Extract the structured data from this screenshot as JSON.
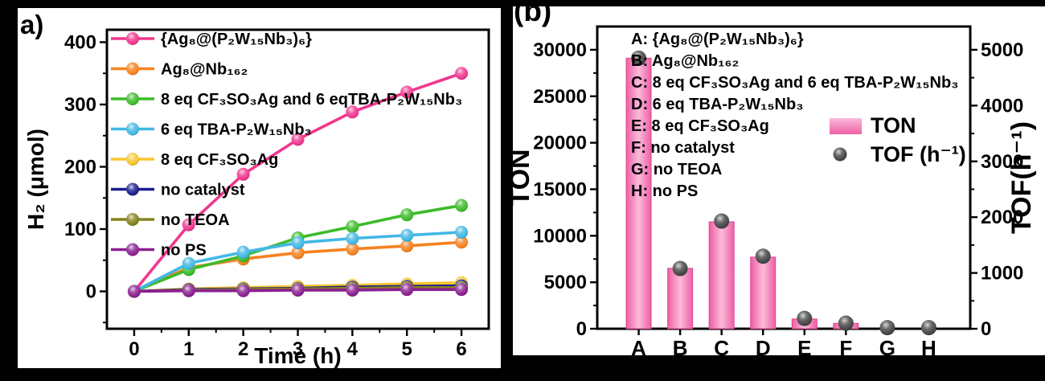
{
  "figure": {
    "background": "#000000",
    "panel_a_label": "a)",
    "panel_b_label": "(b)"
  },
  "chart_data": [
    {
      "type": "line",
      "panel": "a",
      "title": "",
      "xlabel": "Time (h)",
      "ylabel": "H₂ (μmol)",
      "x": [
        0,
        1,
        2,
        3,
        4,
        5,
        6
      ],
      "xticks": [
        0,
        1,
        2,
        3,
        4,
        5,
        6
      ],
      "yticks": [
        0,
        100,
        200,
        300,
        400
      ],
      "xlim": [
        -0.5,
        6.5
      ],
      "ylim": [
        -60,
        420
      ],
      "grid": false,
      "legend_position": "top-left-inside",
      "series": [
        {
          "name": "{Ag₈@(P₂W₁₅Nb₃)₆}",
          "color": "#F1368E",
          "values": [
            0,
            107,
            188,
            244,
            288,
            320,
            350
          ]
        },
        {
          "name": "Ag₈@Nb₁₆₂",
          "color": "#F58220",
          "values": [
            0,
            38,
            52,
            62,
            68,
            73,
            79
          ]
        },
        {
          "name": "8 eq CF₃SO₃Ag and 6 eqTBA-P₂W₁₅Nb₃",
          "color": "#3DBB2A",
          "values": [
            0,
            35,
            57,
            86,
            104,
            123,
            138
          ]
        },
        {
          "name": "6 eq TBA-P₂W₁₅Nb₃",
          "color": "#41B8E4",
          "values": [
            0,
            45,
            63,
            78,
            85,
            90,
            95
          ]
        },
        {
          "name": "8 eq CF₃SO₃Ag",
          "color": "#F7C52F",
          "values": [
            0,
            4,
            6,
            8,
            10,
            12,
            14
          ]
        },
        {
          "name": "no catalyst",
          "color": "#1B1F8C",
          "values": [
            0,
            3,
            4,
            5,
            7,
            8,
            9
          ]
        },
        {
          "name": "no TEOA",
          "color": "#85821C",
          "values": [
            0,
            2,
            3,
            4,
            5,
            6,
            6
          ]
        },
        {
          "name": "no PS",
          "color": "#8A2090",
          "values": [
            0,
            1,
            1,
            2,
            2,
            3,
            3
          ]
        }
      ]
    },
    {
      "type": "bar",
      "panel": "b",
      "title": "",
      "categories": [
        "A",
        "B",
        "C",
        "D",
        "E",
        "F",
        "G",
        "H"
      ],
      "ylabel_left": "TON",
      "ylabel_right": "TOF(h⁻¹)",
      "ylim_left": [
        0,
        32500
      ],
      "ylim_right": [
        0,
        5417
      ],
      "yticks_left": [
        0,
        5000,
        10000,
        15000,
        20000,
        25000,
        30000
      ],
      "yticks_right": [
        0,
        1000,
        2000,
        3000,
        4000,
        5000
      ],
      "bar_series": {
        "name": "TON",
        "values": [
          29100,
          6500,
          11500,
          7700,
          1050,
          580,
          0,
          0
        ],
        "color_edge": "#EE5FA5",
        "color_center": "#FBBBDA",
        "color_outline": "#E0458F"
      },
      "dot_series": {
        "name": "TOF (h⁻¹)",
        "values": [
          4850,
          1080,
          1930,
          1300,
          185,
          100,
          20,
          20
        ],
        "color": "#464646"
      },
      "annotations": [
        "A: {Ag₈@(P₂W₁₅Nb₃)₆}",
        "B: Ag₈@Nb₁₆₂",
        "C: 8 eq CF₃SO₃Ag and 6 eq TBA-P₂W₁₅Nb₃",
        "D: 6 eq TBA-P₂W₁₅Nb₃",
        "E: 8 eq CF₃SO₃Ag",
        "F: no catalyst",
        "G: no TEOA",
        "H: no PS"
      ],
      "legend": {
        "ton_label": "TON",
        "tof_label": "TOF (h⁻¹)"
      }
    }
  ]
}
